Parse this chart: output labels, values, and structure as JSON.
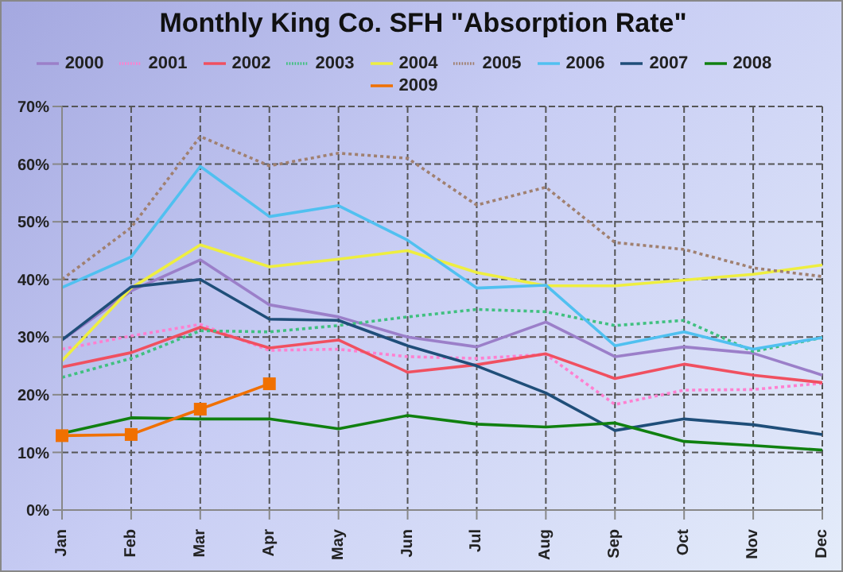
{
  "chart_data": {
    "type": "line",
    "title": "Monthly King Co. SFH \"Absorption Rate\"",
    "categories": [
      "Jan",
      "Feb",
      "Mar",
      "Apr",
      "May",
      "Jun",
      "Jul",
      "Aug",
      "Sep",
      "Oct",
      "Nov",
      "Dec"
    ],
    "series": [
      {
        "name": "2000",
        "color": "#9b7fc9",
        "line_style": "solid",
        "marker": "none",
        "values": [
          29.5,
          38,
          43.4,
          35.6,
          33.5,
          30,
          28.3,
          32.6,
          26.6,
          28.3,
          27.2,
          23.4
        ]
      },
      {
        "name": "2001",
        "color": "#ff80d0",
        "line_style": "dotted",
        "marker": "none",
        "values": [
          27.9,
          30.2,
          32.2,
          27.7,
          27.9,
          26.6,
          26.3,
          27,
          18.3,
          20.8,
          20.9,
          22
        ]
      },
      {
        "name": "2002",
        "color": "#f05060",
        "line_style": "solid",
        "marker": "none",
        "values": [
          24.8,
          27.3,
          31.7,
          28.1,
          29.5,
          23.9,
          25.2,
          27.1,
          22.8,
          25.3,
          23.4,
          22.1
        ]
      },
      {
        "name": "2003",
        "color": "#40c080",
        "line_style": "dotted",
        "marker": "none",
        "values": [
          23,
          26.3,
          31.1,
          30.9,
          32,
          33.5,
          34.8,
          34.4,
          32,
          32.9,
          27.5,
          29.9
        ]
      },
      {
        "name": "2004",
        "color": "#eeee40",
        "line_style": "solid",
        "marker": "none",
        "values": [
          25.9,
          38.5,
          46,
          42.2,
          43.5,
          45,
          41.2,
          38.9,
          38.9,
          39.9,
          40.9,
          42.5
        ]
      },
      {
        "name": "2005",
        "color": "#a08070",
        "line_style": "dotted",
        "marker": "none",
        "values": [
          40,
          49,
          64.8,
          59.7,
          61.9,
          61,
          52.9,
          56,
          46.4,
          45.2,
          42,
          40.5
        ]
      },
      {
        "name": "2006",
        "color": "#50c0f0",
        "line_style": "solid",
        "marker": "none",
        "values": [
          38.6,
          43.9,
          59.6,
          50.9,
          52.8,
          46.8,
          38.5,
          39,
          28.5,
          30.9,
          27.9,
          29.9
        ]
      },
      {
        "name": "2007",
        "color": "#1f4e79",
        "line_style": "solid",
        "marker": "none",
        "values": [
          29.5,
          38.7,
          40,
          33.1,
          32.9,
          28.5,
          25,
          20.3,
          13.8,
          15.8,
          14.8,
          13.1
        ]
      },
      {
        "name": "2008",
        "color": "#108010",
        "line_style": "solid",
        "marker": "none",
        "values": [
          13.3,
          16,
          15.8,
          15.8,
          14.1,
          16.4,
          14.9,
          14.4,
          15.1,
          11.9,
          11.2,
          10.4
        ]
      },
      {
        "name": "2009",
        "color": "#f07000",
        "line_style": "solid",
        "marker": "square",
        "values": [
          12.9,
          13.1,
          17.5,
          21.9,
          null,
          null,
          null,
          null,
          null,
          null,
          null,
          null
        ]
      }
    ],
    "ylim": [
      0,
      70
    ],
    "yticks": [
      {
        "value": 0,
        "label": "0%"
      },
      {
        "value": 10,
        "label": "10%"
      },
      {
        "value": 20,
        "label": "20%"
      },
      {
        "value": 30,
        "label": "30%"
      },
      {
        "value": 40,
        "label": "40%"
      },
      {
        "value": 50,
        "label": "50%"
      },
      {
        "value": 60,
        "label": "60%"
      },
      {
        "value": 70,
        "label": "70%"
      }
    ],
    "grid": true,
    "legend": "top"
  }
}
